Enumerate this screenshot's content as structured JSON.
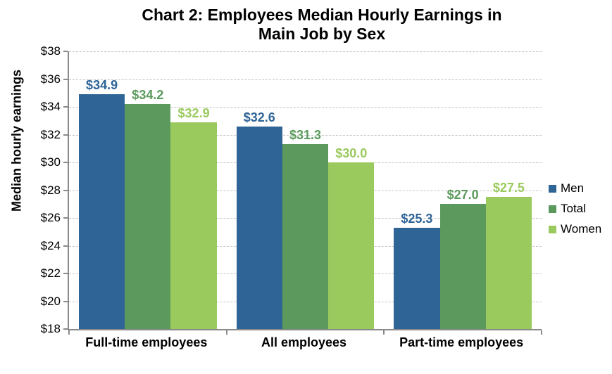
{
  "chart": {
    "title": "Chart 2: Employees Median Hourly Earnings in\nMain Job by Sex",
    "ylabel": "Median hourly earnings"
  },
  "chart_data": {
    "type": "bar",
    "title": "Chart 2: Employees Median Hourly Earnings in Main Job by Sex",
    "xlabel": "",
    "ylabel": "Median hourly earnings",
    "categories": [
      "Full-time employees",
      "All employees",
      "Part-time employees"
    ],
    "series": [
      {
        "name": "Men",
        "color": "#2F6496",
        "values": [
          34.9,
          32.6,
          25.3
        ],
        "labels": [
          "$34.9",
          "$32.6",
          "$25.3"
        ]
      },
      {
        "name": "Total",
        "color": "#5B9A5C",
        "values": [
          34.2,
          31.3,
          27.0
        ],
        "labels": [
          "$34.2",
          "$31.3",
          "$27.0"
        ]
      },
      {
        "name": "Women",
        "color": "#9ACA5E",
        "values": [
          32.9,
          30.0,
          27.5
        ],
        "labels": [
          "$32.9",
          "$30.0",
          "$27.5"
        ]
      }
    ],
    "ylim": [
      18,
      38
    ],
    "ytick_step": 2,
    "ytick_labels": [
      "$38",
      "$36",
      "$34",
      "$32",
      "$30",
      "$28",
      "$26",
      "$24",
      "$22",
      "$20",
      "$18"
    ],
    "grid": "horizontal-dashed",
    "legend_position": "right",
    "legend_labels": [
      "Men",
      "Total",
      "Women"
    ]
  },
  "colors": {
    "men": "#2F6496",
    "total": "#5B9A5C",
    "women": "#9ACA5E",
    "gridline": "#C3C3C3",
    "axis": "#8A8A8A",
    "text": "#000000"
  }
}
